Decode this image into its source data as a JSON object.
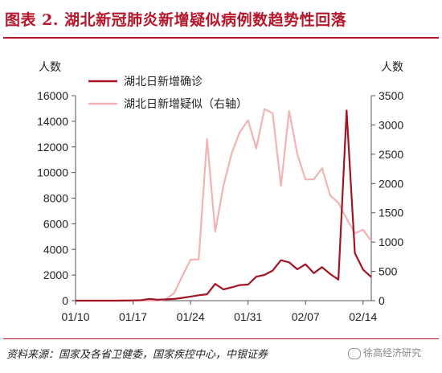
{
  "figure": {
    "title": "图表 2. 湖北新冠肺炎新增疑似病例数趋势性回落",
    "source": "资料来源：国家及各省卫健委，国家疾控中心，中银证券",
    "watermark": "徐高经济研究"
  },
  "colors": {
    "title": "#b5162a",
    "confirmed": "#a31424",
    "suspected": "#f2b3b6"
  },
  "chart_data": {
    "type": "line",
    "left_axis": {
      "unit": "人数",
      "range": [
        0,
        16000
      ],
      "ticks": [
        "0",
        "2000",
        "4000",
        "6000",
        "8000",
        "10000",
        "12000",
        "14000",
        "16000"
      ]
    },
    "right_axis": {
      "unit": "人数",
      "range": [
        0,
        3500
      ],
      "ticks": [
        "0",
        "500",
        "1000",
        "1500",
        "2000",
        "2500",
        "3000",
        "3500"
      ]
    },
    "x_ticks": [
      "01/10",
      "01/17",
      "01/24",
      "01/31",
      "02/07",
      "02/14"
    ],
    "legend_position": "top-left",
    "series": [
      {
        "name": "湖北日新增确诊",
        "axis": "left",
        "color": "#a31424",
        "points": [
          [
            "01/10",
            0
          ],
          [
            "01/11",
            0
          ],
          [
            "01/12",
            0
          ],
          [
            "01/13",
            0
          ],
          [
            "01/14",
            0
          ],
          [
            "01/15",
            0
          ],
          [
            "01/16",
            4
          ],
          [
            "01/17",
            17
          ],
          [
            "01/18",
            45
          ],
          [
            "01/19",
            136
          ],
          [
            "01/20",
            72
          ],
          [
            "01/21",
            105
          ],
          [
            "01/22",
            131
          ],
          [
            "01/23",
            221
          ],
          [
            "01/24",
            323
          ],
          [
            "01/25",
            418
          ],
          [
            "01/26",
            494
          ],
          [
            "01/27",
            1302
          ],
          [
            "01/28",
            876
          ],
          [
            "01/29",
            1037
          ],
          [
            "01/30",
            1220
          ],
          [
            "01/31",
            1254
          ],
          [
            "02/01",
            1870
          ],
          [
            "02/02",
            2005
          ],
          [
            "02/03",
            2345
          ],
          [
            "02/04",
            3156
          ],
          [
            "02/05",
            2987
          ],
          [
            "02/06",
            2447
          ],
          [
            "02/07",
            2841
          ],
          [
            "02/08",
            2147
          ],
          [
            "02/09",
            2618
          ],
          [
            "02/10",
            2075
          ],
          [
            "02/11",
            1638
          ],
          [
            "02/12",
            14840
          ],
          [
            "02/13",
            3705
          ],
          [
            "02/14",
            2420
          ],
          [
            "02/15",
            1843
          ]
        ]
      },
      {
        "name": "湖北日新增疑似（右轴）",
        "axis": "right",
        "color": "#f2b3b6",
        "points": [
          [
            "01/10",
            0
          ],
          [
            "01/11",
            0
          ],
          [
            "01/12",
            0
          ],
          [
            "01/13",
            0
          ],
          [
            "01/14",
            0
          ],
          [
            "01/15",
            0
          ],
          [
            "01/16",
            0
          ],
          [
            "01/17",
            0
          ],
          [
            "01/18",
            0
          ],
          [
            "01/19",
            0
          ],
          [
            "01/20",
            0
          ],
          [
            "01/21",
            20
          ],
          [
            "01/22",
            130
          ],
          [
            "01/23",
            420
          ],
          [
            "01/24",
            700
          ],
          [
            "01/25",
            705
          ],
          [
            "01/26",
            2760
          ],
          [
            "01/27",
            1180
          ],
          [
            "01/28",
            1960
          ],
          [
            "01/29",
            2510
          ],
          [
            "01/30",
            2880
          ],
          [
            "01/31",
            3080
          ],
          [
            "02/01",
            2600
          ],
          [
            "02/02",
            3270
          ],
          [
            "02/03",
            3200
          ],
          [
            "02/04",
            1960
          ],
          [
            "02/05",
            3240
          ],
          [
            "02/06",
            2500
          ],
          [
            "02/07",
            2070
          ],
          [
            "02/08",
            2070
          ],
          [
            "02/09",
            2260
          ],
          [
            "02/10",
            1800
          ],
          [
            "02/11",
            1670
          ],
          [
            "02/12",
            1400
          ],
          [
            "02/13",
            1150
          ],
          [
            "02/14",
            1210
          ],
          [
            "02/15",
            1020
          ]
        ]
      }
    ]
  }
}
